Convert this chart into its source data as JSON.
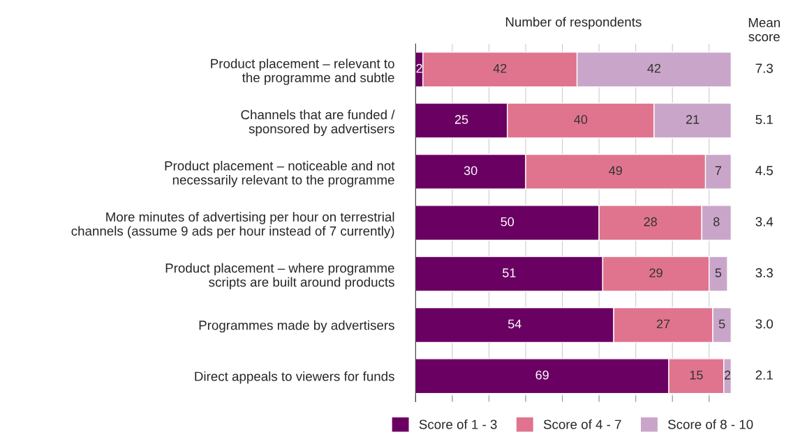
{
  "chart_data": {
    "type": "bar",
    "orientation": "horizontal",
    "stacked": true,
    "title": "Number of respondents",
    "categories": [
      "Product placement – relevant to\nthe programme and subtle",
      "Channels that are funded /\nsponsored by advertisers",
      "Product placement – noticeable and not\nnecessarily relevant to the programme",
      "More minutes of advertising per hour on terrestrial\nchannels (assume 9 ads per hour instead of 7 currently)",
      "Product placement – where programme\nscripts are built around products",
      "Programmes made by advertisers",
      "Direct appeals to viewers for funds"
    ],
    "series": [
      {
        "name": "Score of 1 - 3",
        "color": "#6b0063",
        "values": [
          2,
          25,
          30,
          50,
          51,
          54,
          69
        ]
      },
      {
        "name": "Score of 4 - 7",
        "color": "#e0748e",
        "values": [
          42,
          40,
          49,
          28,
          29,
          27,
          15
        ]
      },
      {
        "name": "Score of 8 - 10",
        "color": "#c9a6c9",
        "values": [
          42,
          21,
          7,
          8,
          5,
          5,
          2
        ]
      }
    ],
    "xlim": [
      0,
      86
    ],
    "xticks": [
      {
        "value": 0,
        "label": null
      },
      {
        "value": 10,
        "label": null
      },
      {
        "value": 20,
        "label": null
      },
      {
        "value": 30,
        "label": null
      },
      {
        "value": 40,
        "label": null
      },
      {
        "value": 50,
        "label": null
      },
      {
        "value": 60,
        "label": null
      },
      {
        "value": 70,
        "label": null
      },
      {
        "value": 80,
        "label": null
      }
    ],
    "grid": "x",
    "tick_labels": "y",
    "data_labels": true,
    "legend": "bottom",
    "annotations": [
      "Mean\nscore",
      "7.3",
      "5.1",
      "4.5",
      "3.4",
      "3.3",
      "3.0",
      "2.1"
    ]
  }
}
